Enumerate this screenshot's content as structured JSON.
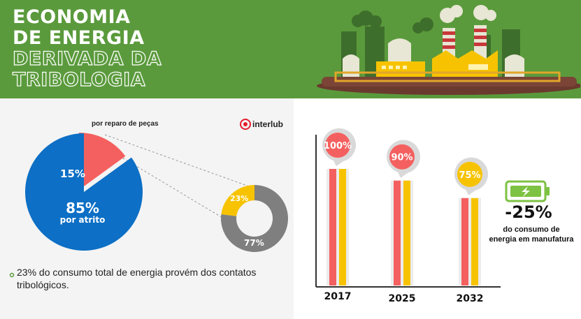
{
  "header": {
    "title_lines": [
      "ECONOMIA",
      "DE ENERGIA",
      "DERIVADA DA",
      "TRIBOLOGIA"
    ]
  },
  "brand": {
    "name": "interlub"
  },
  "pie": {
    "caption": "por reparo de peças",
    "slices": [
      {
        "label": "15%",
        "value": 15,
        "color": "#f4605f"
      },
      {
        "label": "85%",
        "sublabel": "por atrito",
        "value": 85,
        "color": "#0d6fc5"
      }
    ]
  },
  "donut": {
    "slices": [
      {
        "label": "23%",
        "value": 23,
        "color": "#f7c300"
      },
      {
        "label": "77%",
        "value": 77,
        "color": "#7f7f7f"
      }
    ]
  },
  "note": {
    "text": "23% do consumo total de energia provém dos contatos tribológicos."
  },
  "stat": {
    "value": "-25%",
    "line1": "do consumo de",
    "line2": "energia em manufatura"
  },
  "chart_data": [
    {
      "type": "pie",
      "values": [
        15,
        85
      ],
      "labels": [
        "15%",
        "85%"
      ],
      "annotations": [
        "por reparo de peças",
        "por atrito"
      ]
    },
    {
      "type": "pie",
      "values": [
        23,
        77
      ],
      "labels": [
        "23%",
        "77%"
      ]
    },
    {
      "type": "bar",
      "categories": [
        "2017",
        "2025",
        "2032"
      ],
      "values": [
        100,
        90,
        75
      ],
      "labels": [
        "100%",
        "90%",
        "75%"
      ],
      "ylim": [
        0,
        100
      ]
    }
  ],
  "colors": {
    "green": "#5a9a3c",
    "red": "#f4605f",
    "yellow": "#f7c300",
    "blue": "#0d6fc5",
    "gray": "#7f7f7f"
  },
  "icons": [
    "factory-illustration",
    "interlub-logo-icon",
    "battery-lightning-icon",
    "bullet-dot-icon"
  ]
}
